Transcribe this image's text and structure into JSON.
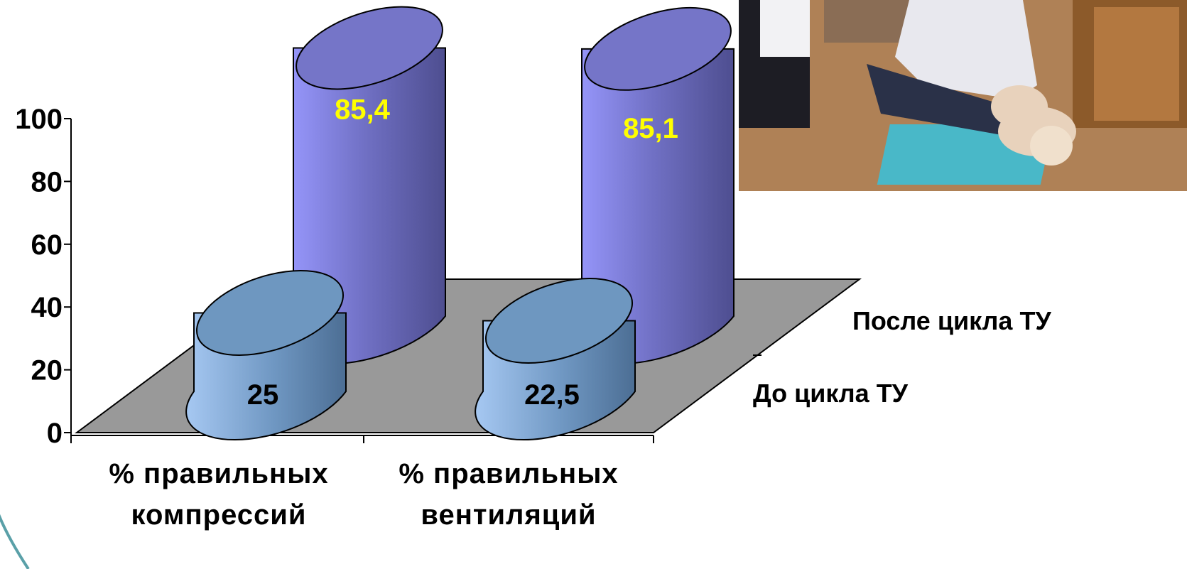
{
  "chart_data": {
    "type": "bar",
    "style": "3d-cylinder",
    "categories": [
      [
        "% правильных",
        "компрессий"
      ],
      [
        "% правильных",
        "вентиляций"
      ]
    ],
    "series": [
      {
        "name": "До цикла ТУ",
        "values": [
          25,
          22.5
        ],
        "labels": [
          "25",
          "22,5"
        ],
        "color": "#7aa7d6",
        "label_color": "#000000"
      },
      {
        "name": "После цикла ТУ",
        "values": [
          85.4,
          85.1
        ],
        "labels": [
          "85,4",
          "85,1"
        ],
        "color": "#8080e6",
        "label_color": "#ffff00"
      }
    ],
    "yticks": [
      "0",
      "20",
      "40",
      "60",
      "80",
      "100"
    ],
    "ylim": [
      0,
      100
    ],
    "floor_color": "#999999"
  },
  "photo": {
    "description_icon": "cpr-training-photo",
    "colors": {
      "floor": "#b98a5c",
      "coat": "#e8e8ee",
      "jeans": "#2a3148",
      "mat": "#49b8c8",
      "manikin": "#e8d2bc"
    }
  }
}
